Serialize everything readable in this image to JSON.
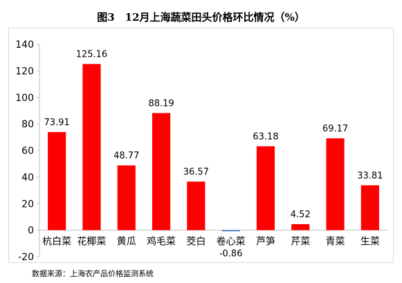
{
  "figure": {
    "title": "图3　12月上海蔬菜田头价格环比情况（%）",
    "source": "数据来源：上海农产品价格监测系统"
  },
  "chart_data": {
    "type": "bar",
    "categories": [
      "杭白菜",
      "花椰菜",
      "黄瓜",
      "鸡毛菜",
      "茭白",
      "卷心菜",
      "芦笋",
      "芹菜",
      "青菜",
      "生菜"
    ],
    "values": [
      73.91,
      125.16,
      48.77,
      88.19,
      36.57,
      -0.86,
      63.18,
      4.52,
      69.17,
      33.81
    ],
    "data_labels": [
      "73.91",
      "125.16",
      "48.77",
      "88.19",
      "36.57",
      "-0.86",
      "63.18",
      "4.52",
      "69.17",
      "33.81"
    ],
    "title": "图3　12月上海蔬菜田头价格环比情况（%）",
    "xlabel": "",
    "ylabel": "",
    "ylim": [
      -20,
      140
    ],
    "yticks": [
      -20,
      0,
      20,
      40,
      60,
      80,
      100,
      120,
      140
    ],
    "grid": false,
    "legend": "none",
    "colors": {
      "positive": "#ff0000",
      "negative": "#4472c4",
      "axis": "#bfbfbf",
      "frame": "#d9d9d9"
    }
  }
}
